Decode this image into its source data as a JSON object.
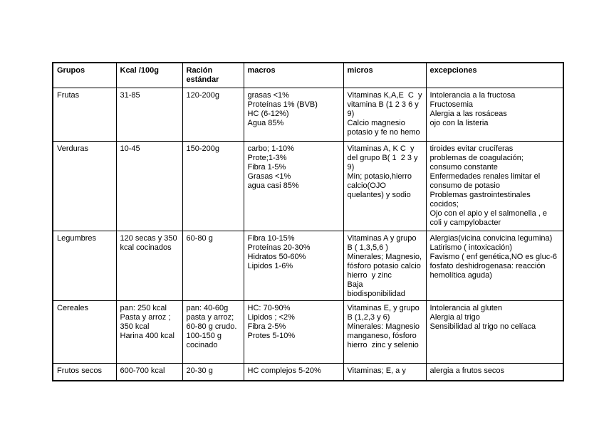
{
  "page": {
    "background_color": "#ffffff",
    "text_color": "#000000",
    "table_border_color": "#000000"
  },
  "table": {
    "headers": {
      "grupos": "Grupos",
      "kcal": "Kcal /100g",
      "racion": "Ración estándar",
      "macros": "macros",
      "micros": "micros",
      "excepciones": "excepciones"
    },
    "rows": [
      {
        "grupo": "Frutas",
        "kcal": "31-85",
        "racion": "120-200g",
        "macros": "grasas <1%\nProteínas 1% (BVB)\nHC (6-12%)\nAgua 85%",
        "micros": "Vitaminas K,A,E  C  y vitamina B (1 2 3 6 y 9)\nCalcio magnesio potasio y fe no hemo",
        "excepciones": "Intolerancia a la fructosa\nFructosemia\nAlergia a las rosáceas\nojo con la listeria"
      },
      {
        "grupo": "Verduras",
        "kcal": "10-45",
        "racion": "150-200g",
        "macros": "carbo; 1-10%\nProte;1-3%\nFibra 1-5%\nGrasas <1%\nagua casi 85%",
        "micros": "Vitaminas A, K C  y del grupo B( 1  2 3 y 9)\nMin; potasio,hierro calcio(OJO quelantes) y sodio",
        "excepciones": "tiroides evitar crucíferas\nproblemas de coagulación;\nconsumo constante\nEnfermedades renales limitar el consumo de potasio\nProblemas gastrointestinales cocidos;\nOjo con el apio y el salmonella , e coli y campylobacter"
      },
      {
        "grupo": "Legumbres",
        "kcal": "120 secas y 350 kcal cocinados",
        "racion": "60-80 g",
        "macros": "Fibra 10-15%\nProteínas 20-30%\nHidratos 50-60%\nLipidos 1-6%",
        "micros": "Vitaminas A y grupo B ( 1,3,5,6 )\nMinerales; Magnesio, fósforo potasio calcio hierro  y zinc\nBaja biodisponibilidad",
        "excepciones": "Alergias(vicina convicina legumina)\nLatirismo ( intoxicación)\nFavismo ( enf genética,NO es gluc-6 fosfato deshidrogenasa: reacción hemolítica aguda)"
      },
      {
        "grupo": "Cereales",
        "kcal": "pan: 250 kcal\nPasta y arroz ;\n350 kcal\nHarina 400 kcal",
        "racion": "pan: 40-60g\npasta y arroz;\n60-80 g crudo.\n100-150 g\ncocinado",
        "macros": "HC: 70-90%\nLipidos ; <2%\nFibra 2-5%\nProtes 5-10%",
        "micros": "Vitaminas E, y grupo B (1,2,3 y 6)\nMinerales: Magnesio manganeso, fósforo hierro  zinc y selenio",
        "excepciones": "Intolerancia al gluten\nAlergia al trigo\nSensibilidad al trigo no celíaca"
      },
      {
        "grupo": "Frutos secos",
        "kcal": "600-700 kcal",
        "racion": "20-30 g",
        "macros": "HC complejos 5-20%",
        "micros": "Vitaminas; E, a y",
        "excepciones": "alergia a frutos secos"
      }
    ]
  }
}
